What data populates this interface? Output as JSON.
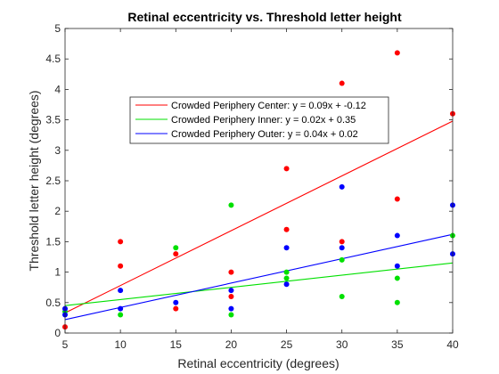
{
  "chart_data": {
    "type": "scatter",
    "title": "Retinal eccentricity vs. Threshold letter height",
    "xlabel": "Retinal eccentricity (degrees)",
    "ylabel": "Threshold letter height (degrees)",
    "xlim": [
      5,
      40
    ],
    "ylim": [
      0,
      5
    ],
    "x_ticks": [
      "5",
      "10",
      "15",
      "20",
      "25",
      "30",
      "35",
      "40"
    ],
    "y_ticks": [
      "0",
      "0.5",
      "1",
      "1.5",
      "2",
      "2.5",
      "3",
      "3.5",
      "4",
      "4.5",
      "5"
    ],
    "grid": false,
    "legend_position": "upper-center",
    "series": [
      {
        "name": "Crowded Periphery Center: y = 0.09x + -0.12",
        "color": "#ff0000",
        "fit": {
          "slope": 0.09,
          "intercept": -0.12
        },
        "points": [
          [
            5,
            0.1
          ],
          [
            10,
            1.5
          ],
          [
            10,
            1.1
          ],
          [
            15,
            1.3
          ],
          [
            15,
            0.4
          ],
          [
            20,
            1.0
          ],
          [
            20,
            0.6
          ],
          [
            25,
            2.7
          ],
          [
            25,
            1.7
          ],
          [
            30,
            4.1
          ],
          [
            30,
            1.5
          ],
          [
            35,
            4.6
          ],
          [
            35,
            2.2
          ],
          [
            40,
            3.6
          ]
        ]
      },
      {
        "name": "Crowded Periphery Inner: y = 0.02x + 0.35",
        "color": "#00e000",
        "fit": {
          "slope": 0.02,
          "intercept": 0.35
        },
        "points": [
          [
            5,
            0.35
          ],
          [
            10,
            0.3
          ],
          [
            15,
            1.4
          ],
          [
            20,
            2.1
          ],
          [
            20,
            0.3
          ],
          [
            25,
            1.0
          ],
          [
            25,
            0.9
          ],
          [
            30,
            1.2
          ],
          [
            30,
            0.6
          ],
          [
            35,
            0.9
          ],
          [
            35,
            0.5
          ],
          [
            40,
            1.6
          ]
        ]
      },
      {
        "name": "Crowded Periphery Outer: y = 0.04x + 0.02",
        "color": "#0000ff",
        "fit": {
          "slope": 0.04,
          "intercept": 0.02
        },
        "points": [
          [
            5,
            0.4
          ],
          [
            5,
            0.3
          ],
          [
            10,
            0.7
          ],
          [
            10,
            0.4
          ],
          [
            15,
            0.5
          ],
          [
            20,
            0.7
          ],
          [
            20,
            0.4
          ],
          [
            25,
            1.4
          ],
          [
            25,
            0.8
          ],
          [
            30,
            2.4
          ],
          [
            30,
            1.4
          ],
          [
            35,
            1.6
          ],
          [
            35,
            1.1
          ],
          [
            40,
            2.1
          ],
          [
            40,
            1.3
          ]
        ]
      }
    ]
  }
}
